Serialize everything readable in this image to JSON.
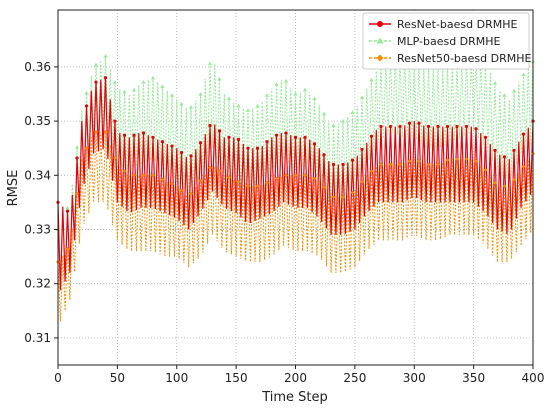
{
  "chart_data": {
    "type": "line",
    "xlabel": "Time Step",
    "ylabel": "RMSE",
    "xlim": [
      0,
      400
    ],
    "ylim": [
      0.305,
      0.3705
    ],
    "x_ticks": [
      0,
      50,
      100,
      150,
      200,
      250,
      300,
      350,
      400
    ],
    "y_ticks": [
      0.31,
      0.32,
      0.33,
      0.34,
      0.35,
      0.36
    ],
    "grid": true,
    "legend_position": "top-right",
    "series": [
      {
        "name": "MLP-baesd DRMHE",
        "color": "#90EE90",
        "style": "dashed",
        "marker": "triangle",
        "x": [
          0,
          10,
          20,
          30,
          40,
          50,
          60,
          70,
          80,
          90,
          100,
          110,
          120,
          130,
          140,
          150,
          160,
          170,
          180,
          190,
          200,
          210,
          220,
          230,
          240,
          250,
          260,
          270,
          280,
          290,
          300,
          310,
          320,
          330,
          340,
          350,
          360,
          370,
          380,
          390,
          400
        ],
        "y": [
          0.326,
          0.329,
          0.346,
          0.354,
          0.356,
          0.349,
          0.348,
          0.35,
          0.351,
          0.349,
          0.347,
          0.344,
          0.348,
          0.353,
          0.348,
          0.346,
          0.345,
          0.346,
          0.349,
          0.351,
          0.348,
          0.349,
          0.346,
          0.342,
          0.343,
          0.345,
          0.349,
          0.353,
          0.356,
          0.355,
          0.355,
          0.353,
          0.352,
          0.353,
          0.355,
          0.356,
          0.354,
          0.349,
          0.346,
          0.352,
          0.355
        ],
        "min": [
          0.322,
          0.324,
          0.339,
          0.347,
          0.349,
          0.342,
          0.341,
          0.342,
          0.343,
          0.341,
          0.339,
          0.336,
          0.34,
          0.345,
          0.34,
          0.338,
          0.337,
          0.339,
          0.341,
          0.343,
          0.341,
          0.342,
          0.339,
          0.335,
          0.336,
          0.338,
          0.342,
          0.346,
          0.348,
          0.347,
          0.347,
          0.345,
          0.345,
          0.346,
          0.347,
          0.348,
          0.345,
          0.341,
          0.339,
          0.344,
          0.346
        ],
        "max": [
          0.33,
          0.335,
          0.352,
          0.36,
          0.362,
          0.356,
          0.355,
          0.357,
          0.358,
          0.356,
          0.354,
          0.352,
          0.355,
          0.362,
          0.355,
          0.353,
          0.352,
          0.353,
          0.356,
          0.358,
          0.355,
          0.356,
          0.353,
          0.349,
          0.35,
          0.352,
          0.356,
          0.36,
          0.362,
          0.362,
          0.362,
          0.36,
          0.36,
          0.36,
          0.361,
          0.362,
          0.361,
          0.356,
          0.354,
          0.358,
          0.361
        ]
      },
      {
        "name": "ResNet-baesd DRMHE",
        "color": "#e8000b",
        "style": "solid",
        "marker": "circle",
        "x": [
          0,
          10,
          20,
          30,
          40,
          50,
          60,
          70,
          80,
          90,
          100,
          110,
          120,
          130,
          140,
          150,
          160,
          170,
          180,
          190,
          200,
          210,
          220,
          230,
          240,
          250,
          260,
          270,
          280,
          290,
          300,
          310,
          320,
          330,
          340,
          350,
          360,
          370,
          380,
          390,
          400
        ],
        "y": [
          0.323,
          0.327,
          0.344,
          0.351,
          0.352,
          0.342,
          0.34,
          0.341,
          0.341,
          0.34,
          0.339,
          0.337,
          0.34,
          0.344,
          0.341,
          0.34,
          0.338,
          0.339,
          0.34,
          0.342,
          0.341,
          0.341,
          0.339,
          0.336,
          0.336,
          0.337,
          0.34,
          0.342,
          0.342,
          0.342,
          0.343,
          0.342,
          0.342,
          0.342,
          0.342,
          0.342,
          0.34,
          0.337,
          0.336,
          0.341,
          0.344
        ],
        "min": [
          0.318,
          0.322,
          0.337,
          0.344,
          0.345,
          0.335,
          0.333,
          0.334,
          0.334,
          0.333,
          0.332,
          0.33,
          0.333,
          0.337,
          0.334,
          0.333,
          0.331,
          0.332,
          0.333,
          0.335,
          0.334,
          0.334,
          0.332,
          0.329,
          0.329,
          0.33,
          0.333,
          0.335,
          0.335,
          0.335,
          0.336,
          0.335,
          0.335,
          0.335,
          0.335,
          0.335,
          0.333,
          0.33,
          0.329,
          0.334,
          0.337
        ],
        "max": [
          0.335,
          0.333,
          0.35,
          0.357,
          0.358,
          0.348,
          0.347,
          0.348,
          0.347,
          0.346,
          0.345,
          0.343,
          0.346,
          0.35,
          0.347,
          0.347,
          0.345,
          0.345,
          0.347,
          0.348,
          0.347,
          0.347,
          0.345,
          0.342,
          0.342,
          0.343,
          0.346,
          0.349,
          0.349,
          0.349,
          0.35,
          0.349,
          0.349,
          0.349,
          0.349,
          0.349,
          0.347,
          0.344,
          0.343,
          0.347,
          0.35
        ]
      },
      {
        "name": "ResNet50-baesd DRMHE",
        "color": "#ff8c00",
        "style": "dashed",
        "marker": "diamond",
        "x": [
          0,
          10,
          20,
          30,
          40,
          50,
          60,
          70,
          80,
          90,
          100,
          110,
          120,
          130,
          140,
          150,
          160,
          170,
          180,
          190,
          200,
          210,
          220,
          230,
          240,
          250,
          260,
          270,
          280,
          290,
          300,
          310,
          320,
          330,
          340,
          350,
          360,
          370,
          380,
          390,
          400
        ],
        "y": [
          0.317,
          0.322,
          0.337,
          0.342,
          0.342,
          0.335,
          0.333,
          0.333,
          0.333,
          0.332,
          0.331,
          0.329,
          0.332,
          0.336,
          0.333,
          0.332,
          0.331,
          0.331,
          0.332,
          0.334,
          0.333,
          0.333,
          0.332,
          0.329,
          0.329,
          0.33,
          0.333,
          0.335,
          0.335,
          0.335,
          0.336,
          0.335,
          0.335,
          0.336,
          0.336,
          0.336,
          0.334,
          0.331,
          0.331,
          0.334,
          0.337
        ],
        "min": [
          0.312,
          0.317,
          0.33,
          0.335,
          0.335,
          0.328,
          0.326,
          0.326,
          0.326,
          0.325,
          0.325,
          0.323,
          0.325,
          0.329,
          0.326,
          0.325,
          0.324,
          0.324,
          0.325,
          0.327,
          0.326,
          0.326,
          0.325,
          0.322,
          0.322,
          0.323,
          0.326,
          0.328,
          0.328,
          0.328,
          0.329,
          0.328,
          0.328,
          0.329,
          0.329,
          0.329,
          0.327,
          0.324,
          0.324,
          0.327,
          0.33
        ],
        "max": [
          0.324,
          0.327,
          0.343,
          0.348,
          0.348,
          0.342,
          0.34,
          0.34,
          0.34,
          0.339,
          0.338,
          0.336,
          0.339,
          0.342,
          0.34,
          0.339,
          0.338,
          0.338,
          0.339,
          0.34,
          0.34,
          0.34,
          0.339,
          0.336,
          0.336,
          0.337,
          0.34,
          0.342,
          0.342,
          0.342,
          0.343,
          0.342,
          0.342,
          0.343,
          0.343,
          0.343,
          0.341,
          0.338,
          0.338,
          0.341,
          0.344
        ]
      }
    ]
  },
  "legend": [
    {
      "name": "ResNet-baesd DRMHE",
      "color": "#e8000b",
      "style": "solid",
      "marker": "circle"
    },
    {
      "name": "MLP-baesd DRMHE",
      "color": "#90EE90",
      "style": "dashed",
      "marker": "triangle"
    },
    {
      "name": "ResNet50-baesd DRMHE",
      "color": "#ff8c00",
      "style": "dashed",
      "marker": "diamond"
    }
  ]
}
